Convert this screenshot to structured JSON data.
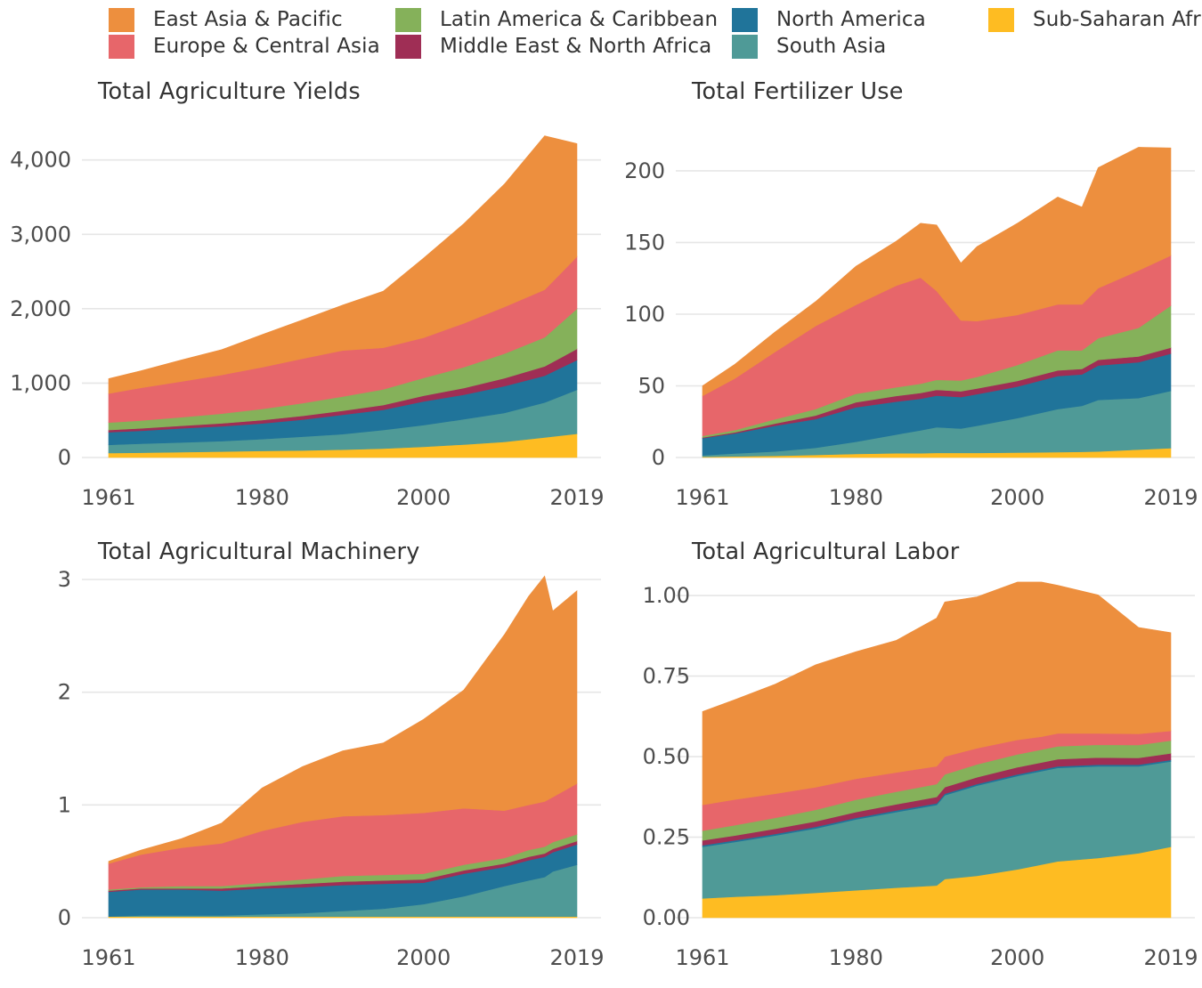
{
  "legend": [
    {
      "key": "eap",
      "label": "East Asia & Pacific",
      "color": "#ED8F3E"
    },
    {
      "key": "eca",
      "label": "Europe & Central Asia",
      "color": "#E7666A"
    },
    {
      "key": "lac",
      "label": "Latin America & Caribbean",
      "color": "#85B15A"
    },
    {
      "key": "mena",
      "label": "Middle East & North Africa",
      "color": "#9F2E55"
    },
    {
      "key": "na",
      "label": "North America",
      "color": "#20749A"
    },
    {
      "key": "sa",
      "label": "South Asia",
      "color": "#4F9A97"
    },
    {
      "key": "ssa",
      "label": "Sub-Saharan Africa",
      "color": "#FEBC22"
    }
  ],
  "chart_data": [
    {
      "type": "area",
      "title": "Total Agriculture Yields",
      "xlabel": "",
      "ylabel": "",
      "x_ticks": [
        "1961",
        "1980",
        "2000",
        "2019"
      ],
      "y_ticks": [
        "0",
        "1,000",
        "2,000",
        "3,000",
        "4,000"
      ],
      "y_tick_values": [
        0,
        1000,
        2000,
        3000,
        4000
      ],
      "xlim": [
        1961,
        2019
      ],
      "ylim": [
        0,
        4200
      ],
      "grid": "horizontal",
      "stacking": "stacked, bottom to top: Sub-Saharan Africa, South Asia, North America, Middle East & North Africa, Latin America & Caribbean, Europe & Central Asia, East Asia & Pacific",
      "x": [
        1961,
        1965,
        1970,
        1975,
        1980,
        1985,
        1990,
        1995,
        2000,
        2005,
        2010,
        2015,
        2019
      ],
      "series": [
        {
          "name": "Sub-Saharan Africa",
          "values": [
            60,
            65,
            72,
            80,
            88,
            95,
            105,
            120,
            145,
            175,
            210,
            270,
            320
          ]
        },
        {
          "name": "South Asia",
          "values": [
            110,
            120,
            130,
            140,
            160,
            185,
            210,
            250,
            290,
            340,
            390,
            470,
            590
          ]
        },
        {
          "name": "North America",
          "values": [
            170,
            175,
            190,
            200,
            210,
            230,
            260,
            270,
            320,
            330,
            360,
            360,
            400
          ]
        },
        {
          "name": "Middle East & North Africa",
          "values": [
            30,
            32,
            35,
            40,
            45,
            50,
            55,
            65,
            75,
            90,
            105,
            125,
            150
          ]
        },
        {
          "name": "Latin America & Caribbean",
          "values": [
            100,
            105,
            115,
            130,
            150,
            170,
            190,
            210,
            240,
            280,
            330,
            390,
            540
          ]
        },
        {
          "name": "Europe & Central Asia",
          "values": [
            390,
            440,
            480,
            520,
            560,
            600,
            620,
            560,
            540,
            590,
            630,
            640,
            700
          ]
        },
        {
          "name": "East Asia & Pacific",
          "values": [
            200,
            230,
            290,
            340,
            440,
            520,
            610,
            760,
            1070,
            1340,
            1650,
            2070,
            1520
          ]
        }
      ]
    },
    {
      "type": "area",
      "title": "Total Fertilizer Use",
      "xlabel": "",
      "ylabel": "",
      "x_ticks": [
        "1961",
        "1980",
        "2000",
        "2019"
      ],
      "y_ticks": [
        "0",
        "50",
        "100",
        "150",
        "200"
      ],
      "y_tick_values": [
        0,
        50,
        100,
        150,
        200
      ],
      "xlim": [
        1961,
        2019
      ],
      "ylim": [
        0,
        218
      ],
      "grid": "horizontal",
      "stacking": "stacked, bottom to top: Sub-Saharan Africa, South Asia, North America, Middle East & North Africa, Latin America & Caribbean, Europe & Central Asia, East Asia & Pacific",
      "x": [
        1961,
        1965,
        1970,
        1975,
        1980,
        1985,
        1988,
        1990,
        1993,
        1995,
        2000,
        2005,
        2008,
        2010,
        2015,
        2019
      ],
      "series": [
        {
          "name": "Sub-Saharan Africa",
          "values": [
            0.5,
            0.8,
            1.2,
            1.8,
            2.5,
            3.0,
            3.0,
            3.2,
            3.2,
            3.2,
            3.5,
            3.8,
            4.0,
            4.2,
            5.5,
            6.5
          ]
        },
        {
          "name": "South Asia",
          "values": [
            1.0,
            2.0,
            3.0,
            5.0,
            8.5,
            13.0,
            16.0,
            18.0,
            17.0,
            19.0,
            24.0,
            30.0,
            32.0,
            36.0,
            36.0,
            40.0
          ]
        },
        {
          "name": "North America",
          "values": [
            12.0,
            14.0,
            18.0,
            20.0,
            24.0,
            23.0,
            22.0,
            22.0,
            22.0,
            22.0,
            22.0,
            23.0,
            22.0,
            24.0,
            25.0,
            26.0
          ]
        },
        {
          "name": "Middle East & North Africa",
          "values": [
            0.5,
            0.8,
            1.5,
            2.5,
            3.5,
            4.0,
            4.0,
            4.0,
            4.0,
            4.0,
            4.0,
            4.0,
            3.8,
            4.0,
            4.0,
            4.2
          ]
        },
        {
          "name": "Latin America & Caribbean",
          "values": [
            1.0,
            1.5,
            3.0,
            4.5,
            6.0,
            6.0,
            6.5,
            7.0,
            7.5,
            8.0,
            11.0,
            14.0,
            13.0,
            15.0,
            20.0,
            29.3
          ]
        },
        {
          "name": "Europe & Central Asia",
          "values": [
            28.0,
            36.0,
            47.0,
            58.0,
            62.0,
            71.0,
            74.0,
            62.0,
            42.0,
            39.0,
            35.0,
            32.0,
            32.0,
            35.0,
            40.0,
            35.0
          ]
        },
        {
          "name": "East Asia & Pacific",
          "values": [
            7.0,
            10.0,
            14.0,
            17.0,
            27.0,
            31.0,
            38.0,
            46.0,
            40.0,
            52.0,
            64.0,
            75.0,
            68.0,
            84.0,
            86.0,
            75.0
          ]
        }
      ]
    },
    {
      "type": "area",
      "title": "Total Agricultural Machinery",
      "xlabel": "",
      "ylabel": "",
      "x_ticks": [
        "1961",
        "1980",
        "2000",
        "2019"
      ],
      "y_ticks": [
        "0",
        "1",
        "2",
        "3"
      ],
      "y_tick_values": [
        0,
        1,
        2,
        3
      ],
      "xlim": [
        1961,
        2019
      ],
      "ylim": [
        0,
        3.0
      ],
      "grid": "horizontal",
      "stacking": "stacked, bottom to top: Sub-Saharan Africa, South Asia, North America, Middle East & North Africa, Latin America & Caribbean, Europe & Central Asia, East Asia & Pacific",
      "x": [
        1961,
        1965,
        1970,
        1975,
        1980,
        1985,
        1990,
        1995,
        2000,
        2005,
        2010,
        2013,
        2015,
        2016,
        2019
      ],
      "series": [
        {
          "name": "Sub-Saharan Africa",
          "values": [
            0.01,
            0.01,
            0.01,
            0.01,
            0.01,
            0.01,
            0.01,
            0.01,
            0.01,
            0.01,
            0.01,
            0.01,
            0.01,
            0.01,
            0.01
          ]
        },
        {
          "name": "South Asia",
          "values": [
            0.0,
            0.01,
            0.01,
            0.01,
            0.02,
            0.03,
            0.05,
            0.07,
            0.11,
            0.18,
            0.27,
            0.32,
            0.35,
            0.4,
            0.46
          ]
        },
        {
          "name": "North America",
          "values": [
            0.22,
            0.23,
            0.23,
            0.22,
            0.23,
            0.23,
            0.23,
            0.22,
            0.19,
            0.2,
            0.17,
            0.18,
            0.18,
            0.17,
            0.18
          ]
        },
        {
          "name": "Middle East & North Africa",
          "values": [
            0.01,
            0.01,
            0.01,
            0.02,
            0.02,
            0.03,
            0.03,
            0.03,
            0.03,
            0.03,
            0.03,
            0.03,
            0.03,
            0.03,
            0.03
          ]
        },
        {
          "name": "Latin America & Caribbean",
          "values": [
            0.01,
            0.01,
            0.02,
            0.02,
            0.03,
            0.04,
            0.05,
            0.05,
            0.05,
            0.05,
            0.05,
            0.06,
            0.06,
            0.06,
            0.06
          ]
        },
        {
          "name": "Europe & Central Asia",
          "values": [
            0.23,
            0.29,
            0.34,
            0.38,
            0.46,
            0.51,
            0.53,
            0.53,
            0.54,
            0.5,
            0.42,
            0.4,
            0.4,
            0.4,
            0.45
          ]
        },
        {
          "name": "East Asia & Pacific",
          "values": [
            0.02,
            0.04,
            0.08,
            0.18,
            0.38,
            0.49,
            0.58,
            0.64,
            0.83,
            1.05,
            1.56,
            1.85,
            2.0,
            1.65,
            1.71
          ]
        }
      ]
    },
    {
      "type": "area",
      "title": "Total Agricultural Labor",
      "xlabel": "",
      "ylabel": "",
      "x_ticks": [
        "1961",
        "1980",
        "2000",
        "2019"
      ],
      "y_ticks": [
        "0.00",
        "0.25",
        "0.50",
        "0.75",
        "1.00"
      ],
      "y_tick_values": [
        0,
        0.25,
        0.5,
        0.75,
        1.0
      ],
      "xlim": [
        1961,
        2019
      ],
      "ylim": [
        0,
        1.05
      ],
      "grid": "horizontal",
      "stacking": "stacked, bottom to top: Sub-Saharan Africa, South Asia, North America, Middle East & North Africa, Latin America & Caribbean, Europe & Central Asia, East Asia & Pacific",
      "x": [
        1961,
        1965,
        1970,
        1975,
        1980,
        1985,
        1990,
        1991,
        1995,
        2000,
        2003,
        2005,
        2010,
        2015,
        2019
      ],
      "series": [
        {
          "name": "Sub-Saharan Africa",
          "values": [
            0.06,
            0.065,
            0.07,
            0.077,
            0.085,
            0.093,
            0.1,
            0.12,
            0.13,
            0.15,
            0.165,
            0.175,
            0.185,
            0.2,
            0.22
          ]
        },
        {
          "name": "South Asia",
          "values": [
            0.16,
            0.17,
            0.185,
            0.2,
            0.22,
            0.235,
            0.25,
            0.26,
            0.28,
            0.29,
            0.29,
            0.29,
            0.285,
            0.27,
            0.265
          ]
        },
        {
          "name": "North America",
          "values": [
            0.005,
            0.005,
            0.005,
            0.005,
            0.005,
            0.005,
            0.005,
            0.005,
            0.005,
            0.005,
            0.005,
            0.005,
            0.005,
            0.005,
            0.005
          ]
        },
        {
          "name": "Middle East & North Africa",
          "values": [
            0.015,
            0.015,
            0.016,
            0.017,
            0.018,
            0.019,
            0.02,
            0.02,
            0.021,
            0.022,
            0.022,
            0.022,
            0.022,
            0.021,
            0.02
          ]
        },
        {
          "name": "Latin America & Caribbean",
          "values": [
            0.03,
            0.032,
            0.034,
            0.036,
            0.038,
            0.039,
            0.04,
            0.04,
            0.04,
            0.04,
            0.04,
            0.04,
            0.04,
            0.04,
            0.04
          ]
        },
        {
          "name": "Europe & Central Asia",
          "values": [
            0.08,
            0.08,
            0.075,
            0.07,
            0.065,
            0.06,
            0.055,
            0.055,
            0.05,
            0.045,
            0.04,
            0.04,
            0.035,
            0.035,
            0.03
          ]
        },
        {
          "name": "East Asia & Pacific",
          "values": [
            0.29,
            0.31,
            0.34,
            0.38,
            0.395,
            0.41,
            0.46,
            0.48,
            0.47,
            0.49,
            0.48,
            0.46,
            0.43,
            0.33,
            0.305
          ]
        }
      ]
    }
  ]
}
